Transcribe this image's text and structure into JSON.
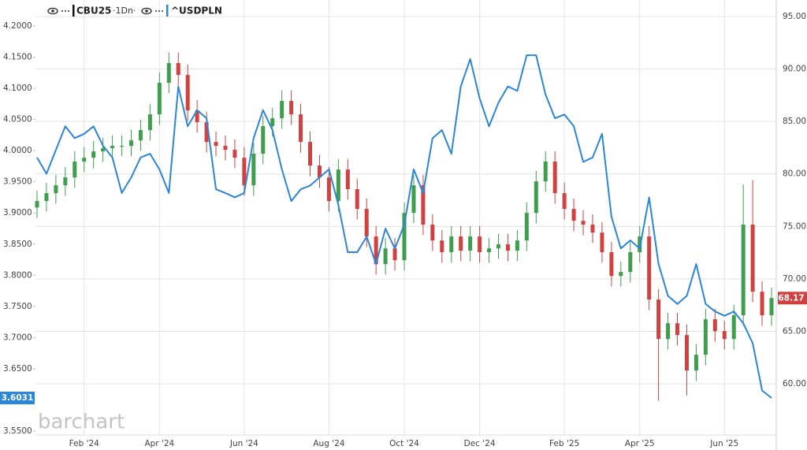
{
  "chart_data": {
    "type": "candlestick",
    "interval": "·1Dn·",
    "watermark": "barchart",
    "categories": [
      null,
      null,
      null,
      null,
      null,
      "Feb '24",
      null,
      null,
      null,
      null,
      null,
      null,
      null,
      "Apr '24",
      null,
      null,
      null,
      null,
      null,
      null,
      null,
      null,
      "Jun '24",
      null,
      null,
      null,
      null,
      null,
      null,
      null,
      null,
      "Aug '24",
      null,
      null,
      null,
      null,
      null,
      null,
      null,
      "Oct '24",
      null,
      null,
      null,
      null,
      null,
      null,
      null,
      "Dec '24",
      null,
      null,
      null,
      null,
      null,
      null,
      null,
      null,
      "Feb '25",
      null,
      null,
      null,
      null,
      null,
      null,
      null,
      "Apr '25",
      null,
      null,
      null,
      null,
      null,
      null,
      null,
      null,
      "Jun '25",
      null,
      null,
      null,
      null,
      null
    ],
    "grid": true,
    "ylim": [
      3.5437,
      4.2417
    ],
    "yticks": [
      {
        "value": 4.2,
        "label": "4.2000"
      },
      {
        "value": 4.15,
        "label": "4.1500"
      },
      {
        "value": 4.1,
        "label": "4.1000"
      },
      {
        "value": 4.05,
        "label": "4.0500"
      },
      {
        "value": 4.0,
        "label": "4.0000"
      },
      {
        "value": 3.95,
        "label": "3.9500"
      },
      {
        "value": 3.9,
        "label": "3.9000"
      },
      {
        "value": 3.85,
        "label": "3.8500"
      },
      {
        "value": 3.8,
        "label": "3.8000"
      },
      {
        "value": 3.75,
        "label": "3.7500"
      },
      {
        "value": 3.7,
        "label": "3.7000"
      },
      {
        "value": 3.65,
        "label": "3.6500"
      },
      {
        "value": 3.6,
        "label": "3.6000"
      },
      {
        "value": 3.55,
        "label": "3.5500"
      }
    ],
    "y2lim": [
      55.12,
      96.58
    ],
    "y2ticks": [
      {
        "value": 95,
        "label": "95.00"
      },
      {
        "value": 90,
        "label": "90.00"
      },
      {
        "value": 85,
        "label": "85.00"
      },
      {
        "value": 80,
        "label": "80.00"
      },
      {
        "value": 75,
        "label": "75.00"
      },
      {
        "value": 70,
        "label": "70.00"
      },
      {
        "value": 65,
        "label": "65.00"
      },
      {
        "value": 60,
        "label": "60.00"
      }
    ],
    "series": [
      {
        "name": "CBU25",
        "type": "candlestick",
        "axis": "y2",
        "up_color": "#3f9e4d",
        "down_color": "#d0413f",
        "open": [
          76.8,
          77.42,
          78.17,
          78.92,
          79.67,
          81.18,
          81.55,
          82.15,
          82.45,
          82.68,
          82.68,
          83.2,
          84.18,
          85.68,
          88.69,
          90.57,
          89.44,
          86.06,
          84.93,
          83.05,
          82.68,
          82.3,
          81.55,
          78.92,
          81.93,
          84.56,
          85.31,
          86.96,
          85.68,
          83.05,
          80.8,
          79.67,
          77.42,
          80.42,
          78.55,
          76.67,
          74.04,
          71.41,
          72.91,
          71.78,
          76.29,
          78.92,
          75.17,
          73.66,
          72.54,
          74.04,
          72.69,
          74.04,
          72.54,
          72.91,
          73.29,
          72.69,
          73.66,
          76.29,
          79.3,
          81.18,
          78.17,
          76.67,
          75.54,
          75.17,
          74.41,
          72.54,
          70.28,
          70.66,
          72.54,
          74.04,
          68.03,
          64.27,
          65.77,
          64.65,
          61.27,
          62.77,
          66.15,
          65.02,
          64.27,
          66.53,
          75.17,
          68.78,
          66.53
        ],
        "high": [
          78.4,
          79.17,
          79.92,
          80.67,
          82.18,
          82.55,
          83.15,
          83.45,
          83.68,
          83.68,
          84.2,
          85.18,
          86.68,
          89.69,
          91.57,
          91.57,
          90.44,
          87.06,
          85.93,
          84.05,
          83.68,
          83.3,
          82.55,
          82.93,
          85.56,
          86.31,
          87.96,
          87.96,
          86.68,
          84.05,
          81.8,
          80.67,
          81.42,
          81.42,
          79.55,
          77.67,
          75.04,
          73.91,
          73.91,
          77.29,
          79.92,
          79.92,
          76.17,
          74.66,
          75.04,
          75.04,
          75.04,
          75.04,
          73.91,
          74.29,
          74.29,
          74.66,
          77.29,
          80.3,
          82.18,
          82.18,
          79.17,
          77.67,
          76.54,
          76.17,
          75.41,
          73.54,
          71.66,
          73.54,
          75.04,
          75.04,
          69.03,
          66.77,
          66.77,
          65.65,
          63.77,
          67.15,
          67.15,
          66.02,
          67.53,
          79.0,
          79.4,
          69.78,
          69.17
        ],
        "low": [
          75.8,
          76.42,
          77.17,
          77.92,
          78.67,
          80.18,
          80.55,
          81.15,
          81.45,
          81.68,
          81.68,
          82.2,
          83.18,
          84.68,
          87.69,
          88.44,
          85.06,
          83.93,
          82.05,
          81.68,
          81.3,
          80.55,
          77.92,
          77.92,
          80.93,
          83.56,
          84.31,
          84.68,
          82.05,
          79.8,
          78.67,
          76.42,
          76.42,
          77.55,
          75.67,
          73.04,
          70.41,
          70.41,
          70.78,
          70.78,
          75.29,
          74.17,
          72.66,
          71.54,
          71.54,
          71.69,
          71.69,
          71.54,
          71.54,
          71.91,
          71.69,
          71.69,
          72.66,
          75.29,
          78.3,
          77.17,
          75.67,
          74.54,
          74.17,
          73.41,
          71.54,
          69.28,
          69.28,
          69.66,
          71.54,
          67.03,
          58.4,
          63.27,
          63.65,
          58.9,
          60.27,
          61.77,
          64.02,
          63.27,
          63.27,
          65.53,
          67.78,
          65.53,
          65.53
        ],
        "close": [
          77.42,
          78.17,
          78.92,
          79.67,
          81.18,
          81.55,
          82.15,
          82.45,
          82.68,
          82.68,
          83.2,
          84.18,
          85.68,
          88.69,
          90.57,
          89.44,
          86.06,
          84.93,
          83.05,
          82.68,
          82.3,
          81.55,
          78.92,
          81.93,
          84.56,
          85.31,
          86.96,
          85.68,
          83.05,
          80.8,
          79.67,
          77.42,
          80.42,
          78.55,
          76.67,
          74.04,
          71.41,
          72.91,
          71.78,
          76.29,
          78.92,
          75.17,
          73.66,
          72.54,
          74.04,
          72.69,
          74.04,
          72.54,
          72.91,
          73.29,
          72.69,
          73.66,
          76.29,
          79.3,
          81.18,
          78.17,
          76.67,
          75.54,
          75.17,
          74.41,
          72.54,
          70.28,
          70.66,
          72.54,
          74.04,
          68.03,
          64.27,
          65.77,
          64.65,
          61.27,
          62.77,
          66.15,
          65.02,
          64.27,
          66.53,
          75.17,
          68.78,
          66.53,
          68.17
        ]
      },
      {
        "name": "^USDPLN",
        "type": "line",
        "color": "#2b86d9",
        "values": [
          3.989,
          3.963,
          4.001,
          4.039,
          4.02,
          4.027,
          4.039,
          4.008,
          3.989,
          3.932,
          3.957,
          3.989,
          3.995,
          3.97,
          3.932,
          4.103,
          4.039,
          4.065,
          4.052,
          3.938,
          3.932,
          3.925,
          3.932,
          4.02,
          4.065,
          4.033,
          3.97,
          3.919,
          3.938,
          3.944,
          3.957,
          3.97,
          3.913,
          3.837,
          3.837,
          3.862,
          3.818,
          3.875,
          3.843,
          3.881,
          3.97,
          3.932,
          4.02,
          4.033,
          3.995,
          4.103,
          4.147,
          4.084,
          4.039,
          4.077,
          4.103,
          4.096,
          4.153,
          4.153,
          4.09,
          4.052,
          4.058,
          4.039,
          3.982,
          3.989,
          4.027,
          3.894,
          3.843,
          3.856,
          3.843,
          3.925,
          3.818,
          3.767,
          3.754,
          3.767,
          3.818,
          3.754,
          3.742,
          3.735,
          3.742,
          3.723,
          3.691,
          3.615,
          3.6031
        ]
      }
    ]
  }
}
